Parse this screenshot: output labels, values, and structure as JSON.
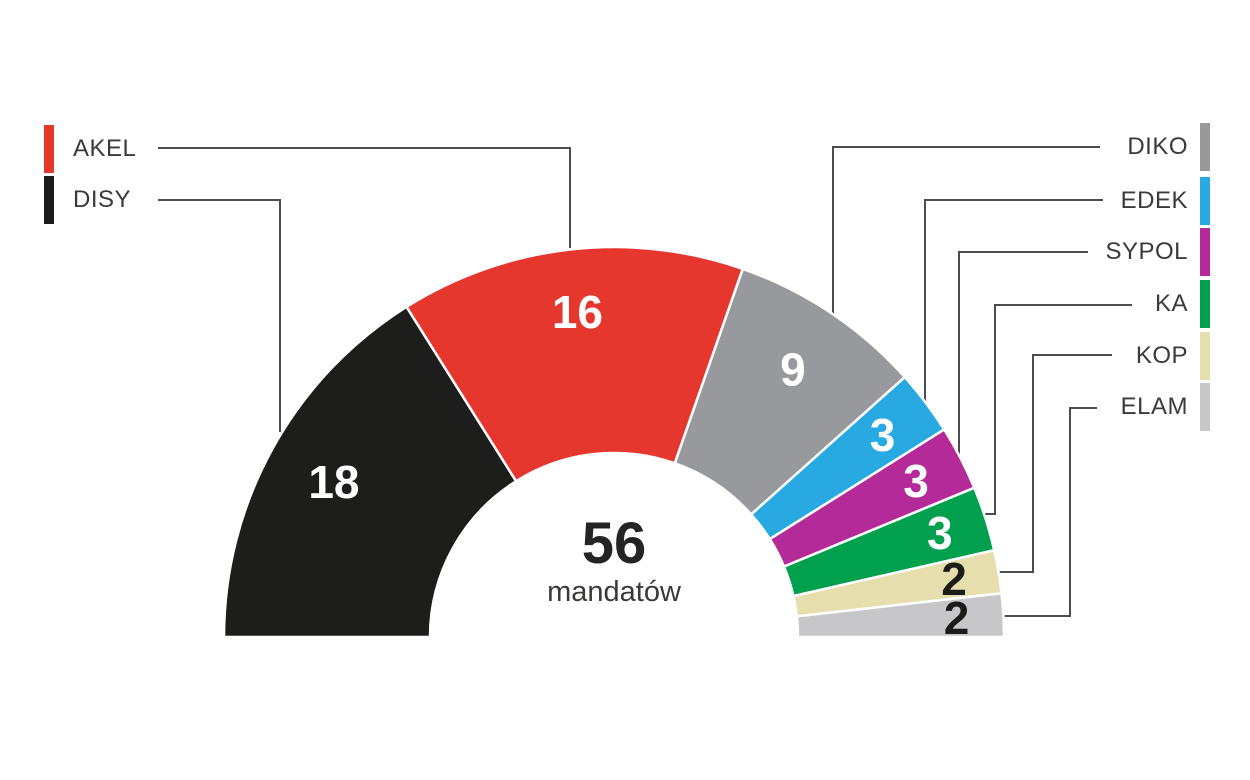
{
  "center": {
    "total": "56",
    "unit": "mandatów"
  },
  "chart_data": {
    "type": "pie",
    "subtype": "hemicycle-half-donut",
    "total": 56,
    "total_label": "56 mandatów",
    "legend_position": "both-sides",
    "series": [
      {
        "name": "DISY",
        "value": 18,
        "color": "#1d1d1b",
        "value_label_color": "#ffffff"
      },
      {
        "name": "AKEL",
        "value": 16,
        "color": "#e6372e",
        "value_label_color": "#ffffff"
      },
      {
        "name": "DIKO",
        "value": 9,
        "color": "#97999c",
        "value_label_color": "#ffffff"
      },
      {
        "name": "EDEK",
        "value": 3,
        "color": "#29a9e1",
        "value_label_color": "#ffffff"
      },
      {
        "name": "SYPOL",
        "value": 3,
        "color": "#b42a98",
        "value_label_color": "#ffffff"
      },
      {
        "name": "KA",
        "value": 3,
        "color": "#00a04e",
        "value_label_color": "#ffffff"
      },
      {
        "name": "KOP",
        "value": 2,
        "color": "#e6dfad",
        "value_label_color": "#1c1c1a"
      },
      {
        "name": "ELAM",
        "value": 2,
        "color": "#c7c7c9",
        "value_label_color": "#1c1c1a"
      }
    ]
  },
  "legend": {
    "left": [
      {
        "label": "AKEL",
        "color": "#e6372e"
      },
      {
        "label": "DISY",
        "color": "#1d1d1b"
      }
    ],
    "right": [
      {
        "label": "DIKO",
        "color": "#97999c"
      },
      {
        "label": "EDEK",
        "color": "#29a9e1"
      },
      {
        "label": "SYPOL",
        "color": "#b42a98"
      },
      {
        "label": "KA",
        "color": "#00a04e"
      },
      {
        "label": "KOP",
        "color": "#e6dfad"
      },
      {
        "label": "ELAM",
        "color": "#c7c7c9"
      }
    ]
  }
}
